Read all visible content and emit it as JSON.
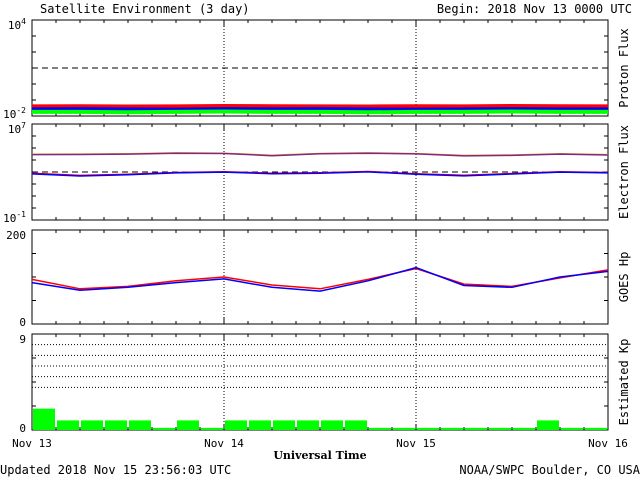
{
  "header": {
    "title": "Satellite Environment (3 day)",
    "begin": "Begin:  2018 Nov 13 0000 UTC"
  },
  "footer": {
    "updated": "Updated 2018 Nov 15 23:56:03 UTC",
    "credit": "NOAA/SWPC Boulder, CO USA"
  },
  "x_axis": {
    "title": "Universal Time",
    "ticks": [
      "Nov 13",
      "Nov 14",
      "Nov 15",
      "Nov 16"
    ]
  },
  "colors": {
    "red": "#ff0000",
    "blue": "#0000ff",
    "green": "#00ff00",
    "orange": "#ffa500",
    "purple": "#7b2a8a"
  },
  "chart_data": [
    {
      "type": "line",
      "ylabel": "Proton Flux",
      "yscale": "log",
      "ylim": [
        0.01,
        10000
      ],
      "ytick_labels": [
        {
          "base": "10",
          "exp": "4"
        },
        {
          "base": "10",
          "exp": "-2"
        }
      ],
      "threshold": 10,
      "x": [
        0,
        6,
        12,
        18,
        24,
        30,
        36,
        42,
        48,
        54,
        60,
        66,
        72
      ],
      "xlabel": "",
      "series": [
        {
          "color": "red",
          "values": [
            0.04,
            0.041,
            0.039,
            0.04,
            0.042,
            0.041,
            0.04,
            0.039,
            0.041,
            0.04,
            0.042,
            0.041,
            0.04
          ]
        },
        {
          "color": "blue",
          "values": [
            0.026,
            0.027,
            0.026,
            0.025,
            0.027,
            0.026,
            0.027,
            0.026,
            0.025,
            0.026,
            0.027,
            0.026,
            0.026
          ]
        },
        {
          "color": "green",
          "values": [
            0.018,
            0.018,
            0.017,
            0.018,
            0.019,
            0.018,
            0.018,
            0.017,
            0.018,
            0.018,
            0.019,
            0.018,
            0.018
          ]
        }
      ]
    },
    {
      "type": "line",
      "ylabel": "Electron Flux",
      "yscale": "log",
      "ylim": [
        0.1,
        10000000
      ],
      "ytick_labels": [
        {
          "base": "10",
          "exp": "7"
        },
        {
          "base": "10",
          "exp": "-1"
        }
      ],
      "threshold": 1000,
      "x": [
        0,
        6,
        12,
        18,
        24,
        30,
        36,
        42,
        48,
        54,
        60,
        66,
        72
      ],
      "series": [
        {
          "color": "orange",
          "values": [
            30000,
            31000,
            33000,
            39000,
            37000,
            25000,
            35000,
            39000,
            34000,
            24000,
            26000,
            33000,
            28000
          ]
        },
        {
          "color": "purple",
          "values": [
            28000,
            29000,
            31000,
            37000,
            35000,
            23000,
            33000,
            37000,
            32000,
            22000,
            24000,
            31000,
            26000
          ]
        },
        {
          "color": "red",
          "values": [
            800,
            520,
            650,
            900,
            1050,
            800,
            850,
            1100,
            720,
            530,
            750,
            1050,
            900
          ]
        },
        {
          "color": "blue",
          "values": [
            700,
            460,
            580,
            840,
            990,
            720,
            780,
            1020,
            650,
            470,
            680,
            980,
            840
          ]
        }
      ]
    },
    {
      "type": "line",
      "ylabel": "GOES Hp",
      "yscale": "linear",
      "ylim": [
        0,
        200
      ],
      "ytick_labels": [
        "200",
        "0"
      ],
      "x": [
        0,
        6,
        12,
        18,
        24,
        30,
        36,
        42,
        48,
        54,
        60,
        66,
        72
      ],
      "series": [
        {
          "color": "red",
          "values": [
            95,
            75,
            80,
            92,
            100,
            83,
            75,
            95,
            118,
            85,
            80,
            98,
            115
          ]
        },
        {
          "color": "blue",
          "values": [
            88,
            72,
            78,
            88,
            96,
            78,
            70,
            92,
            120,
            82,
            78,
            100,
            112
          ]
        }
      ]
    },
    {
      "type": "bar",
      "ylabel": "Estimated Kp",
      "ylim": [
        0,
        9
      ],
      "ytick_labels": [
        "9",
        "0"
      ],
      "gridlines": [
        4,
        5,
        6,
        7,
        8,
        9
      ],
      "bar_hours": 3,
      "values": [
        2.0,
        0.9,
        0.9,
        0.9,
        0.9,
        0.2,
        0.9,
        0.2,
        0.9,
        0.9,
        0.9,
        0.9,
        0.9,
        0.9,
        0.2,
        0.2,
        0.2,
        0.2,
        0.2,
        0.2,
        0.2,
        0.9,
        0.2,
        0.2
      ]
    }
  ]
}
